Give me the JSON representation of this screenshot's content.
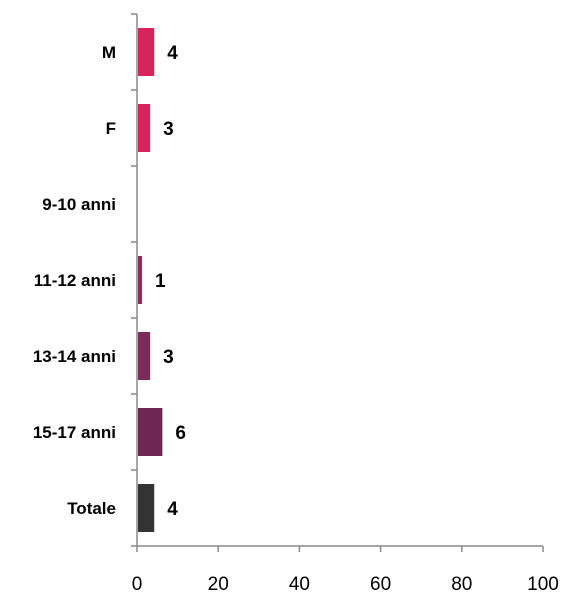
{
  "chart_data": {
    "type": "bar",
    "orientation": "horizontal",
    "categories": [
      "M",
      "F",
      "9-10 anni",
      "11-12 anni",
      "13-14 anni",
      "15-17 anni",
      "Totale"
    ],
    "values": [
      4,
      3,
      null,
      1,
      3,
      6,
      4
    ],
    "data_labels": [
      "4",
      "3",
      "",
      "1",
      "3",
      "6",
      "4"
    ],
    "bar_colors": [
      "#d6245c",
      "#d6245c",
      "#a8325e",
      "#8a2f5c",
      "#7a2c5a",
      "#6e2753",
      "#333333"
    ],
    "xlim": [
      0,
      100
    ],
    "x_ticks": [
      0,
      20,
      40,
      60,
      80,
      100
    ],
    "x_tick_labels": [
      "0",
      "20",
      "40",
      "60",
      "80",
      "100"
    ],
    "title": "",
    "xlabel": "",
    "ylabel": "",
    "grid": false,
    "legend": "none"
  }
}
